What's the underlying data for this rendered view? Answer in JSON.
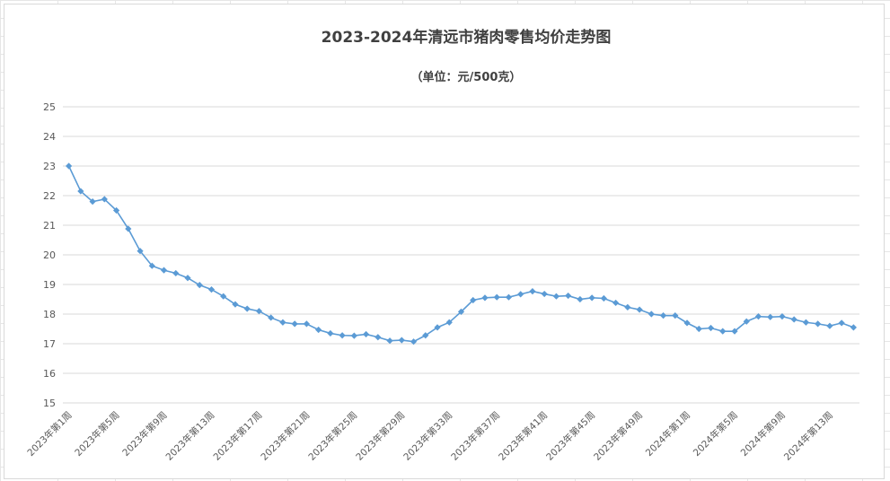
{
  "chart_data": {
    "type": "line",
    "title": "2023-2024年清远市猪肉零售均价走势图",
    "subtitle": "（单位：元/500克）",
    "xlabel": "",
    "ylabel": "",
    "ylim": [
      15,
      25
    ],
    "yticks": [
      15,
      16,
      17,
      18,
      19,
      20,
      21,
      22,
      23,
      24,
      25
    ],
    "grid": true,
    "legend": "none",
    "colors": {
      "series": "#5b9bd5",
      "gridline": "#d9d9d9",
      "text": "#595959"
    },
    "x_tick_labels": [
      "2023年第1周",
      "2023年第5周",
      "2023年第9周",
      "2023年第13周",
      "2023年第17周",
      "2023年第21周",
      "2023年第25周",
      "2023年第29周",
      "2023年第33周",
      "2023年第37周",
      "2023年第41周",
      "2023年第45周",
      "2023年第49周",
      "2024年第1周",
      "2024年第5周",
      "2024年第9周",
      "2024年第13周"
    ],
    "series": [
      {
        "name": "",
        "values": [
          23.0,
          22.15,
          21.8,
          21.88,
          21.5,
          20.88,
          20.13,
          19.63,
          19.48,
          19.38,
          19.22,
          18.98,
          18.83,
          18.6,
          18.33,
          18.18,
          18.1,
          17.88,
          17.72,
          17.67,
          17.67,
          17.47,
          17.35,
          17.28,
          17.27,
          17.32,
          17.22,
          17.1,
          17.12,
          17.07,
          17.28,
          17.55,
          17.72,
          18.08,
          18.47,
          18.55,
          18.57,
          18.57,
          18.67,
          18.77,
          18.68,
          18.6,
          18.62,
          18.5,
          18.55,
          18.53,
          18.38,
          18.23,
          18.15,
          18.0,
          17.95,
          17.95,
          17.7,
          17.5,
          17.53,
          17.42,
          17.42,
          17.75,
          17.92,
          17.9,
          17.92,
          17.82,
          17.72,
          17.67,
          17.6,
          17.7,
          17.55
        ]
      }
    ]
  }
}
